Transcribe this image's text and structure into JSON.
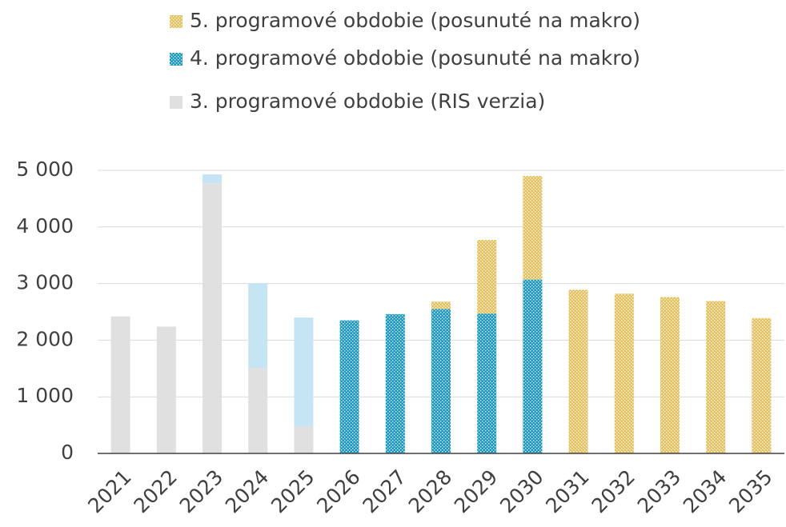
{
  "chart_data": {
    "type": "bar",
    "stacked": true,
    "categories": [
      "2021",
      "2022",
      "2023",
      "2024",
      "2025",
      "2026",
      "2027",
      "2028",
      "2029",
      "2030",
      "2031",
      "2032",
      "2033",
      "2034",
      "2035"
    ],
    "series": [
      {
        "name": "3. programové obdobie (RIS verzia)",
        "color": "#e0e0e0",
        "pattern": false,
        "values": [
          2420,
          2240,
          4770,
          1510,
          480,
          null,
          null,
          null,
          null,
          null,
          null,
          null,
          null,
          null,
          null
        ]
      },
      {
        "name": "4. programové obdobie (posunuté na makro)",
        "color": "#1b9ac4",
        "pattern": true,
        "values": [
          null,
          null,
          null,
          null,
          null,
          2350,
          2460,
          2550,
          2470,
          3070,
          null,
          null,
          null,
          null,
          null
        ]
      },
      {
        "name": null,
        "color": "#c5e5f4",
        "pattern": false,
        "values": [
          null,
          null,
          160,
          1500,
          1920,
          null,
          null,
          null,
          null,
          null,
          null,
          null,
          null,
          null,
          null
        ]
      },
      {
        "name": "5. programové obdobie (posunuté na makro)",
        "color": "#e6c160",
        "pattern": true,
        "values": [
          null,
          null,
          null,
          null,
          null,
          null,
          null,
          130,
          1300,
          1830,
          2890,
          2820,
          2760,
          2690,
          2390
        ]
      }
    ],
    "ylim": [
      0,
      5000
    ],
    "yticks": [
      0,
      {
        "value": 1000,
        "label": "1 000"
      },
      {
        "value": 2000,
        "label": "2 000"
      },
      {
        "value": 3000,
        "label": "3 000"
      },
      {
        "value": 4000,
        "label": "4 000"
      },
      {
        "value": 5000,
        "label": "5 000"
      }
    ],
    "grid": true,
    "legend": "top"
  }
}
